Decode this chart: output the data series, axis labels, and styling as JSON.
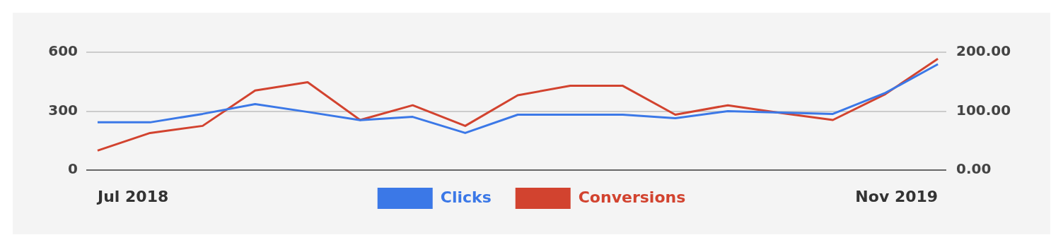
{
  "chart_data": {
    "type": "line",
    "categories": [
      null,
      null,
      null,
      null,
      null,
      null,
      null,
      null,
      null,
      null,
      null,
      null,
      null,
      null,
      null,
      null,
      null
    ],
    "annotations": [
      "Jul 2018",
      "Nov 2019"
    ],
    "series": [
      {
        "name": "Clicks",
        "color": "#3b78e7",
        "values": [
          243,
          243,
          286,
          336,
          296,
          254,
          271,
          189,
          282,
          282,
          282,
          264,
          300,
          293,
          286,
          393,
          539
        ]
      },
      {
        "name": "Conversions",
        "color": "#d2432f",
        "axis": "y2",
        "values": [
          33,
          63,
          75,
          135,
          149,
          85,
          110,
          75,
          127,
          143,
          143,
          94,
          110,
          97,
          85,
          129,
          189
        ]
      }
    ],
    "ylim": [
      0,
      600
    ],
    "yticks": [
      0,
      300,
      600
    ],
    "y2lim": [
      0,
      200
    ],
    "y2ticks": [
      {
        "value": 0,
        "label": "0.00"
      },
      {
        "value": 100,
        "label": "100.00"
      },
      {
        "value": 200,
        "label": "200.00"
      }
    ],
    "grid": "y",
    "legend": "bottom",
    "marker": "none",
    "line_style": "solid"
  }
}
